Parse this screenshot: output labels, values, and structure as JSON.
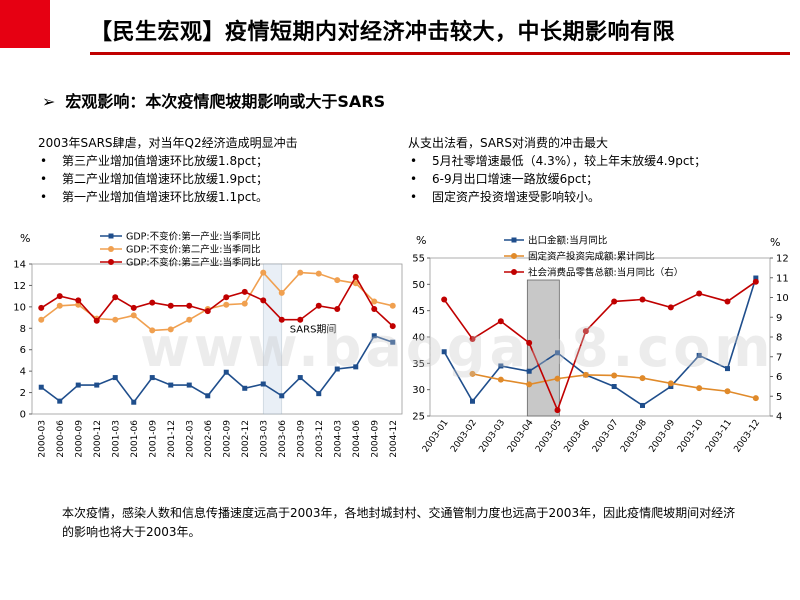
{
  "header": {
    "title": "【民生宏观】疫情短期内对经济冲击较大，中长期影响有限",
    "accent_color": "#e60012"
  },
  "section": {
    "arrow": "➢",
    "heading": "宏观影响：本次疫情爬坡期影响或大于SARS"
  },
  "left_text": {
    "intro": "2003年SARS肆虐，对当年Q2经济造成明显冲击",
    "bullets": [
      "第三产业增加值增速环比放缓1.8pct；",
      "第二产业增加值增速环比放缓1.9pct；",
      "第一产业增加值增速环比放缓1.1pct。"
    ]
  },
  "right_text": {
    "intro": "从支出法看，SARS对消费的冲击最大",
    "bullets": [
      "5月社零增速最低（4.3%），较上年末放缓4.9pct；",
      "6-9月出口增速一路放缓6pct；",
      "固定资产投资增速受影响较小。"
    ]
  },
  "footer": {
    "text": "本次疫情，感染人数和信息传播速度远高于2003年，各地封城封村、交通管制力度也远高于2003年，因此疫情爬坡期间对经济的影响也将大于2003年。"
  },
  "watermark": "www.baogao8.com",
  "chart_data": [
    {
      "type": "line",
      "unit_label": "%",
      "categories": [
        "2000-03",
        "2000-06",
        "2000-09",
        "2000-12",
        "2001-03",
        "2001-06",
        "2001-09",
        "2001-12",
        "2002-03",
        "2002-06",
        "2002-09",
        "2002-12",
        "2003-03",
        "2003-06",
        "2003-09",
        "2003-12",
        "2004-03",
        "2004-06",
        "2004-09",
        "2004-12"
      ],
      "ylim": [
        0,
        14
      ],
      "yticks": [
        0,
        2,
        4,
        6,
        8,
        10,
        12,
        14
      ],
      "annotation": "SARS期间",
      "highlight_range": [
        "2003-03",
        "2003-06"
      ],
      "series": [
        {
          "name": "GDP:不变价:第一产业:当季同比",
          "color": "#1f4e8c",
          "marker": "square",
          "values": [
            2.5,
            1.2,
            2.7,
            2.7,
            3.4,
            1.1,
            3.4,
            2.7,
            2.7,
            1.7,
            3.9,
            2.4,
            2.8,
            1.7,
            3.4,
            1.9,
            4.2,
            4.4,
            7.3,
            6.7
          ]
        },
        {
          "name": "GDP:不变价:第二产业:当季同比",
          "color": "#f0a050",
          "marker": "circle",
          "values": [
            8.8,
            10.1,
            10.2,
            8.9,
            8.8,
            9.2,
            7.8,
            7.9,
            8.8,
            9.8,
            10.2,
            10.3,
            13.2,
            11.3,
            13.2,
            13.1,
            12.5,
            12.2,
            10.5,
            10.1
          ]
        },
        {
          "name": "GDP:不变价:第三产业:当季同比",
          "color": "#c00000",
          "marker": "circle",
          "values": [
            9.9,
            11.0,
            10.6,
            8.7,
            10.9,
            9.9,
            10.4,
            10.1,
            10.1,
            9.6,
            10.9,
            11.4,
            10.6,
            8.8,
            8.8,
            10.1,
            9.8,
            12.8,
            9.8,
            8.2
          ]
        }
      ]
    },
    {
      "type": "line",
      "unit_label_left": "%",
      "unit_label_right": "%",
      "categories": [
        "2003-01",
        "2003-02",
        "2003-03",
        "2003-04",
        "2003-05",
        "2003-06",
        "2003-07",
        "2003-08",
        "2003-09",
        "2003-10",
        "2003-11",
        "2003-12"
      ],
      "ylim_left": [
        25,
        55
      ],
      "yticks_left": [
        25,
        30,
        35,
        40,
        45,
        50,
        55
      ],
      "ylim_right": [
        4,
        12
      ],
      "yticks_right": [
        4,
        5,
        6,
        7,
        8,
        9,
        10,
        11,
        12
      ],
      "highlight_range": [
        "2003-04",
        "2003-05"
      ],
      "series": [
        {
          "name": "出口金额:当月同比",
          "color": "#1f4e8c",
          "marker": "square",
          "axis": "left",
          "values": [
            37.2,
            27.8,
            34.5,
            33.5,
            37.0,
            32.8,
            30.6,
            27.0,
            30.6,
            36.5,
            34.0,
            51.2
          ]
        },
        {
          "name": "固定资产投资完成额:累计同比",
          "color": "#e08a2a",
          "marker": "circle",
          "axis": "left",
          "values": [
            null,
            33.0,
            31.9,
            31.0,
            32.1,
            32.8,
            32.7,
            32.2,
            31.2,
            30.3,
            29.7,
            28.4
          ]
        },
        {
          "name": "社会消费品零售总额:当月同比（右）",
          "color": "#c00000",
          "marker": "circle",
          "axis": "right",
          "values": [
            9.9,
            7.9,
            8.8,
            7.7,
            4.3,
            8.3,
            9.8,
            9.9,
            9.5,
            10.2,
            9.8,
            10.8
          ]
        }
      ]
    }
  ]
}
